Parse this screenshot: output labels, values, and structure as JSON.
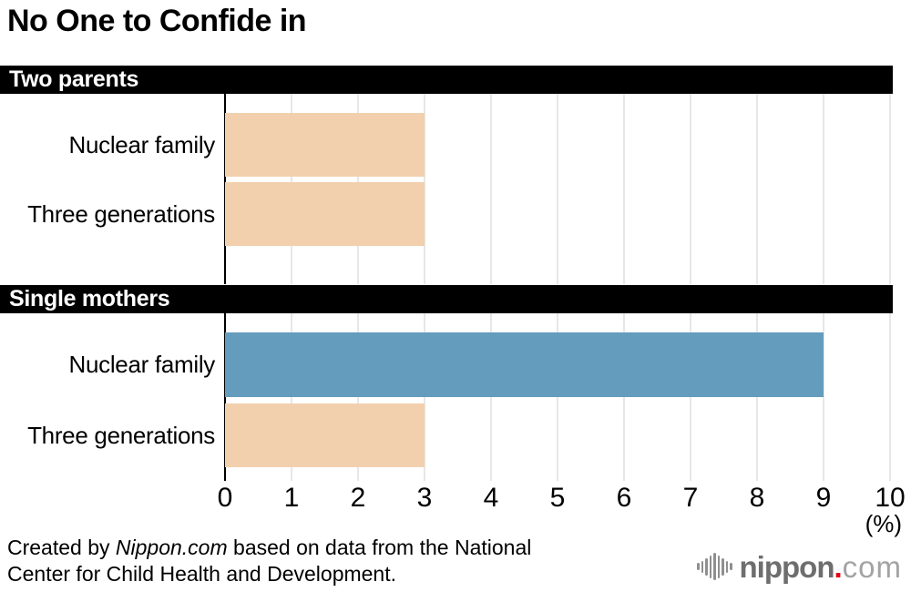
{
  "title": "No One to Confide in",
  "chart_data": {
    "type": "bar",
    "orientation": "horizontal",
    "title": "No One to Confide in",
    "x_axis_unit_label": "(%)",
    "xlim": [
      0,
      10
    ],
    "x_ticks": [
      0,
      1,
      2,
      3,
      4,
      5,
      6,
      7,
      8,
      9,
      10
    ],
    "grid": true,
    "colors": {
      "default_bar": "#f2d0ae",
      "highlight_bar": "#649cbd",
      "gridline": "#cfcfcf",
      "axis_line": "#000000",
      "header_band_bg": "#000000",
      "header_band_text": "#ffffff"
    },
    "sections": [
      {
        "header": "Two parents",
        "rows": [
          {
            "label": "Nuclear family",
            "value": 3,
            "color": "default"
          },
          {
            "label": "Three generations",
            "value": 3,
            "color": "default"
          }
        ]
      },
      {
        "header": "Single mothers",
        "rows": [
          {
            "label": "Nuclear family",
            "value": 9,
            "color": "highlight"
          },
          {
            "label": "Three generations",
            "value": 3,
            "color": "default"
          }
        ]
      }
    ]
  },
  "footer": {
    "credit_line1_pre": "Created by ",
    "credit_line1_italic": "Nippon.com",
    "credit_line1_post": " based on data from the National",
    "credit_line2": "Center for Child Health and Development.",
    "logo_icon": "soundwave-bars-icon",
    "logo_text_main": "nippon",
    "logo_text_dot": ".",
    "logo_text_tld": "com"
  }
}
